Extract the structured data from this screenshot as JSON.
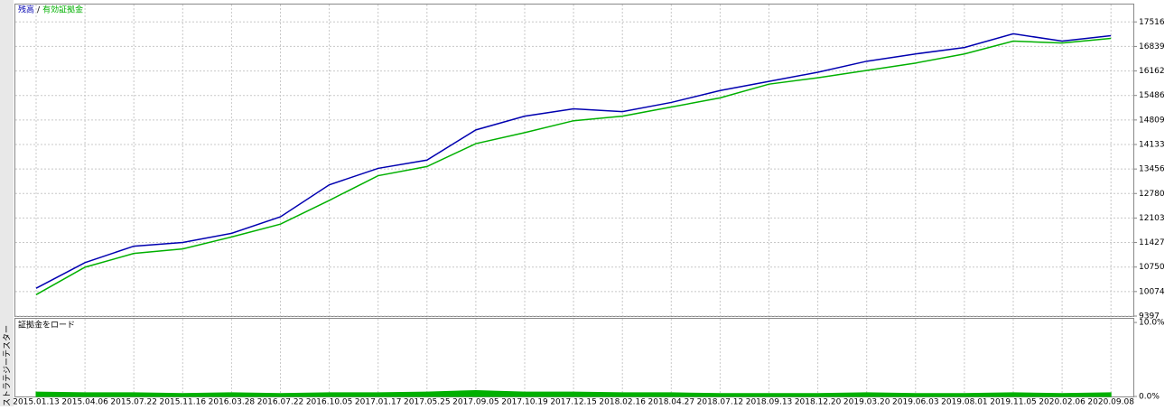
{
  "window_label": "ストラテジーテスター",
  "chart_data": [
    {
      "type": "line",
      "legend_separator": "/",
      "categories": [
        "2015.01.13",
        "2015.04.06",
        "2015.07.22",
        "2015.11.16",
        "2016.03.28",
        "2016.07.22",
        "2016.10.05",
        "2017.01.17",
        "2017.05.25",
        "2017.09.05",
        "2017.10.19",
        "2017.12.15",
        "2018.02.16",
        "2018.04.27",
        "2018.07.12",
        "2018.09.13",
        "2018.12.20",
        "2019.03.20",
        "2019.06.03",
        "2019.08.01",
        "2019.11.05",
        "2020.02.06",
        "2020.09.08"
      ],
      "series": [
        {
          "name": "残高",
          "color": "#0000b0",
          "values": [
            10165,
            10873,
            11327,
            11428,
            11681,
            12136,
            13020,
            13474,
            13702,
            14535,
            14914,
            15116,
            15040,
            15293,
            15621,
            15874,
            16127,
            16430,
            16632,
            16809,
            17188,
            16986,
            17137
          ]
        },
        {
          "name": "有効証拠金",
          "color": "#00b000",
          "values": [
            9988,
            10746,
            11125,
            11251,
            11580,
            11934,
            12590,
            13272,
            13525,
            14156,
            14460,
            14788,
            14914,
            15166,
            15419,
            15798,
            15975,
            16177,
            16380,
            16632,
            16986,
            16935,
            17061
          ]
        }
      ],
      "ylim": [
        9397,
        17996
      ],
      "yticks": [
        9397,
        10074,
        10750,
        11427,
        12103,
        12780,
        13456,
        14133,
        14809,
        15486,
        16162,
        16839,
        17516
      ],
      "grid": true
    },
    {
      "type": "area",
      "title": "証拠金をロード",
      "color": "#00b000",
      "values": [
        0.6,
        0.5,
        0.5,
        0.4,
        0.5,
        0.4,
        0.5,
        0.5,
        0.6,
        0.8,
        0.6,
        0.6,
        0.5,
        0.5,
        0.4,
        0.4,
        0.4,
        0.5,
        0.4,
        0.4,
        0.5,
        0.4,
        0.5
      ],
      "ylim": [
        0,
        10.5
      ],
      "yticks": [
        {
          "value": 10,
          "label": "10.0%"
        },
        {
          "value": 0,
          "label": "0.0%"
        }
      ]
    }
  ]
}
